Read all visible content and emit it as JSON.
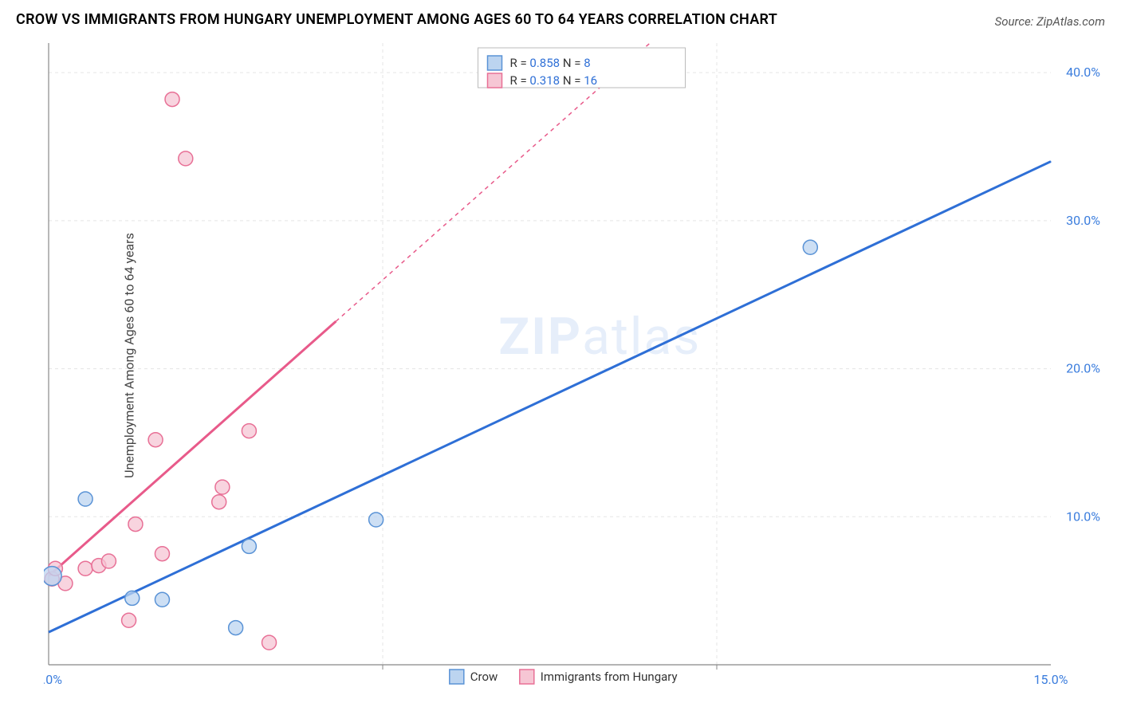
{
  "title": "CROW VS IMMIGRANTS FROM HUNGARY UNEMPLOYMENT AMONG AGES 60 TO 64 YEARS CORRELATION CHART",
  "source": "Source: ZipAtlas.com",
  "ylabel": "Unemployment Among Ages 60 to 64 years",
  "watermark_a": "ZIP",
  "watermark_b": "atlas",
  "chart": {
    "type": "scatter",
    "xlim": [
      0,
      15
    ],
    "ylim": [
      0,
      42
    ],
    "xtick_labels": [
      {
        "v": 0,
        "label": "0.0%"
      },
      {
        "v": 15,
        "label": "15.0%"
      }
    ],
    "xtick_grid": [
      5,
      10
    ],
    "ytick_labels": [
      {
        "v": 10,
        "label": "10.0%"
      },
      {
        "v": 20,
        "label": "20.0%"
      },
      {
        "v": 30,
        "label": "30.0%"
      },
      {
        "v": 40,
        "label": "40.0%"
      }
    ],
    "grid_color": "#e5e5e5",
    "axis_color": "#888888",
    "background": "#ffffff",
    "series": [
      {
        "name": "Crow",
        "color_fill": "#bcd4f0",
        "color_stroke": "#5a93d6",
        "line_color": "#2e6fd6",
        "line_width": 3,
        "line_dash_from": 15,
        "marker_r": 9,
        "R": "0.858",
        "N": "8",
        "reg_p1": {
          "x": 0,
          "y": 2.2
        },
        "reg_p2": {
          "x": 15,
          "y": 34.0
        },
        "points": [
          {
            "x": 0.05,
            "y": 6.0,
            "r": 12
          },
          {
            "x": 0.55,
            "y": 11.2
          },
          {
            "x": 1.25,
            "y": 4.5
          },
          {
            "x": 1.7,
            "y": 4.4
          },
          {
            "x": 2.8,
            "y": 2.5
          },
          {
            "x": 3.0,
            "y": 8.0
          },
          {
            "x": 4.9,
            "y": 9.8
          },
          {
            "x": 11.4,
            "y": 28.2
          }
        ]
      },
      {
        "name": "Immigrants from Hungary",
        "color_fill": "#f6c6d4",
        "color_stroke": "#e87096",
        "line_color": "#e85a8a",
        "line_width": 3,
        "line_dash_from": 4.3,
        "marker_r": 9,
        "R": "0.318",
        "N": "16",
        "reg_p1": {
          "x": 0,
          "y": 6.0
        },
        "reg_p2": {
          "x": 9.0,
          "y": 42.0
        },
        "points": [
          {
            "x": 0.05,
            "y": 5.8
          },
          {
            "x": 0.1,
            "y": 6.5
          },
          {
            "x": 0.25,
            "y": 5.5
          },
          {
            "x": 0.55,
            "y": 6.5
          },
          {
            "x": 0.75,
            "y": 6.7
          },
          {
            "x": 0.9,
            "y": 7.0
          },
          {
            "x": 1.2,
            "y": 3.0
          },
          {
            "x": 1.3,
            "y": 9.5
          },
          {
            "x": 1.6,
            "y": 15.2
          },
          {
            "x": 1.7,
            "y": 7.5
          },
          {
            "x": 1.85,
            "y": 38.2
          },
          {
            "x": 2.05,
            "y": 34.2
          },
          {
            "x": 2.55,
            "y": 11.0
          },
          {
            "x": 2.6,
            "y": 12.0
          },
          {
            "x": 3.0,
            "y": 15.8
          },
          {
            "x": 3.3,
            "y": 1.5
          }
        ]
      }
    ],
    "legend_top": {
      "box_stroke": "#bbbbbb",
      "R_label": "R =",
      "N_label": "N =",
      "value_color": "#2e6fd6",
      "text_color": "#333333"
    },
    "legend_bottom": {
      "text_color": "#333333"
    }
  }
}
